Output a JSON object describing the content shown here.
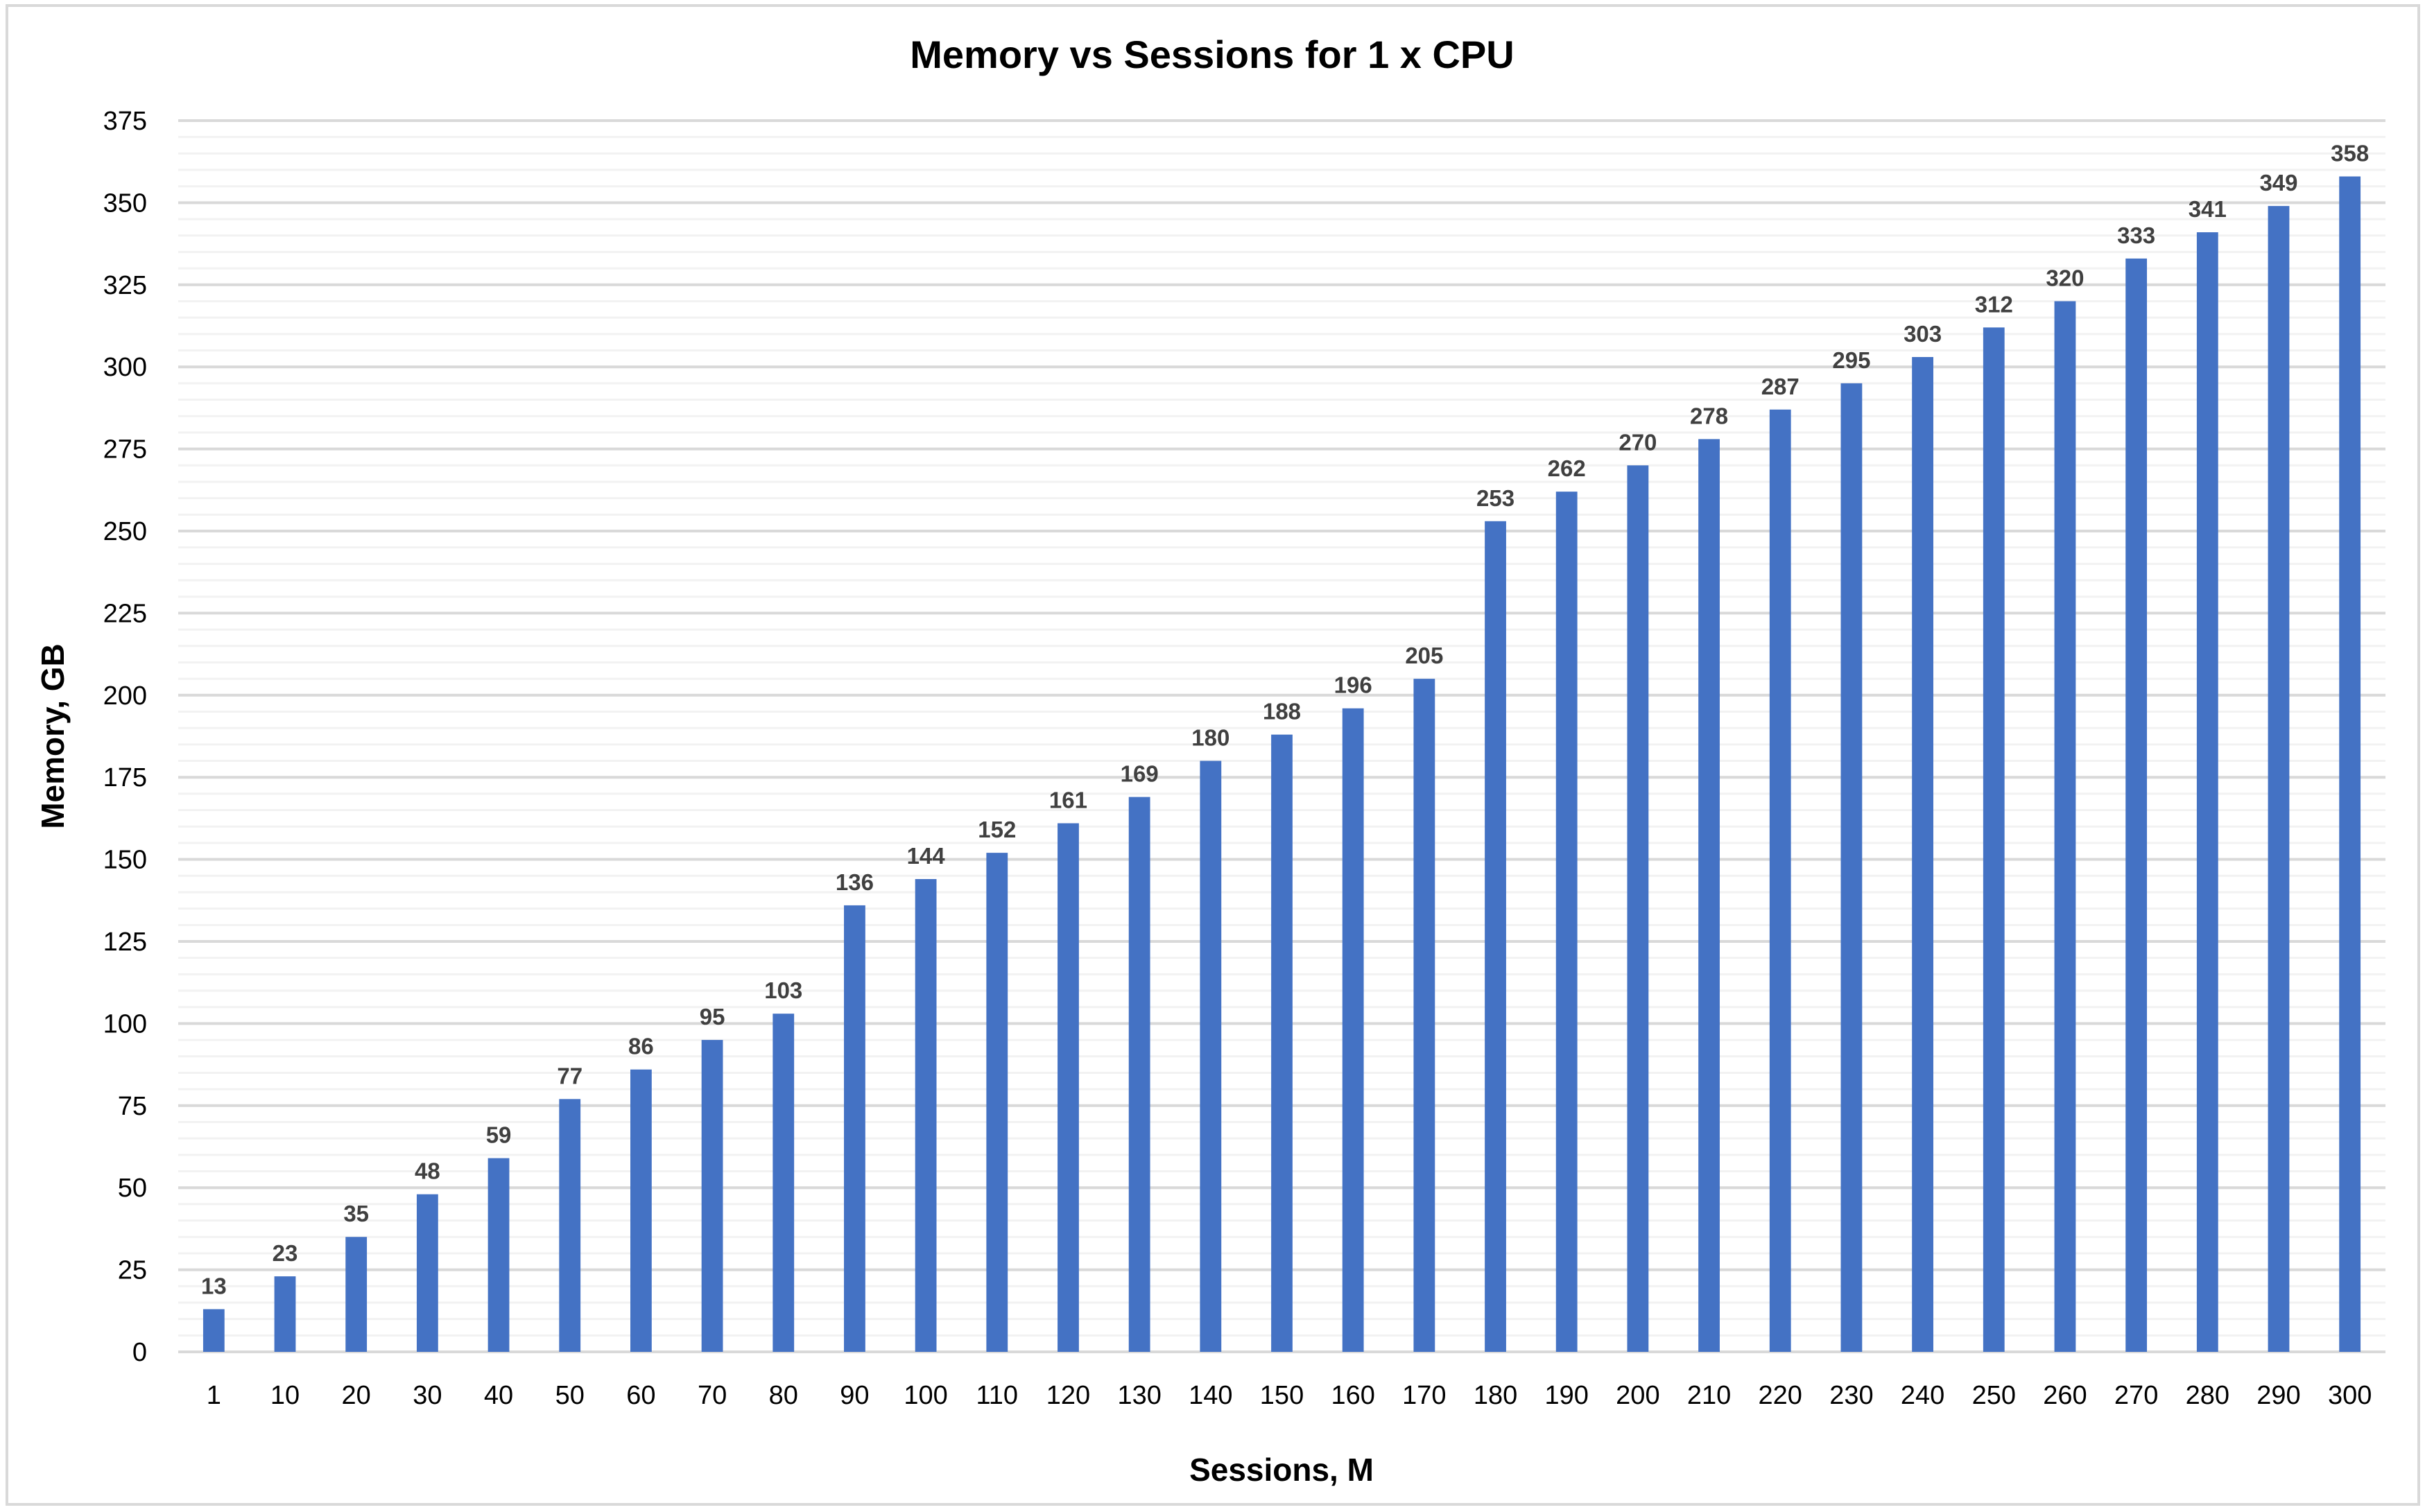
{
  "chart_data": {
    "type": "bar",
    "title": "Memory vs Sessions for 1 x CPU",
    "xlabel": "Sessions, M",
    "ylabel": "Memory, GB",
    "categories": [
      "1",
      "10",
      "20",
      "30",
      "40",
      "50",
      "60",
      "70",
      "80",
      "90",
      "100",
      "110",
      "120",
      "130",
      "140",
      "150",
      "160",
      "170",
      "180",
      "190",
      "200",
      "210",
      "220",
      "230",
      "240",
      "250",
      "260",
      "270",
      "280",
      "290",
      "300"
    ],
    "values": [
      13,
      23,
      35,
      48,
      59,
      77,
      86,
      95,
      103,
      136,
      144,
      152,
      161,
      169,
      180,
      188,
      196,
      205,
      253,
      262,
      270,
      278,
      287,
      295,
      303,
      312,
      320,
      333,
      341,
      349,
      358
    ],
    "ylim": [
      0,
      375
    ],
    "yticks": [
      0,
      25,
      50,
      75,
      100,
      125,
      150,
      175,
      200,
      225,
      250,
      275,
      300,
      325,
      350,
      375
    ],
    "minor_grid_step": 5,
    "grid": true,
    "data_labels": true,
    "bar_color": "#4472C4"
  }
}
